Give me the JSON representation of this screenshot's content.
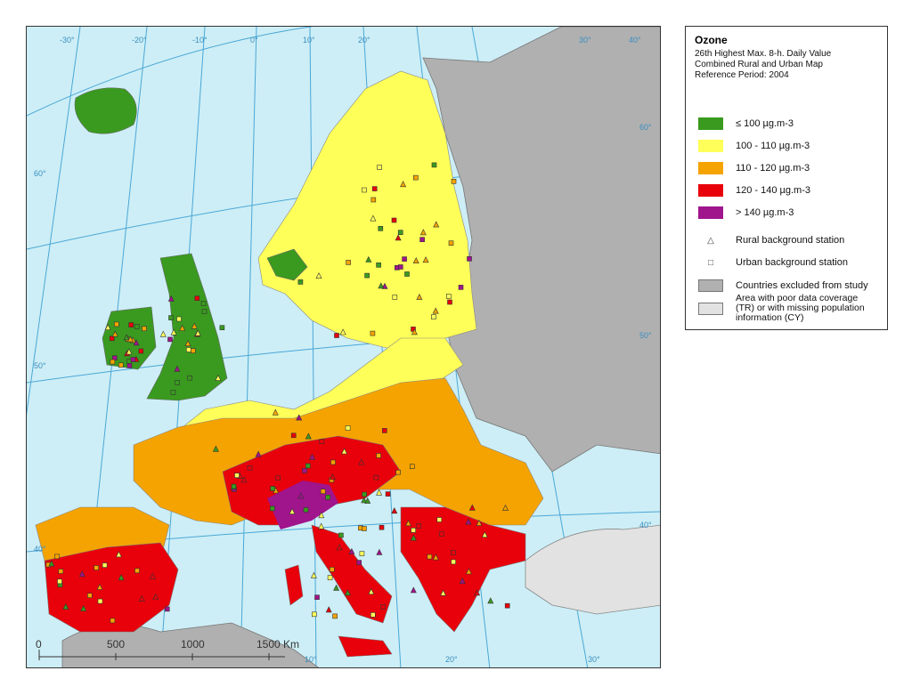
{
  "legend": {
    "title": "Ozone",
    "subtitle_line1": "26th Highest Max. 8-h. Daily Value",
    "subtitle_line2": "Combined Rural and Urban Map",
    "subtitle_line3": "Reference Period: 2004",
    "classes": [
      {
        "label": "≤ 100 µg.m-3",
        "color": "#3a9a1f"
      },
      {
        "label": "100 - 110 µg.m-3",
        "color": "#ffff5a"
      },
      {
        "label": "110 - 120 µg.m-3",
        "color": "#f5a300"
      },
      {
        "label": "120 - 140 µg.m-3",
        "color": "#e8000b"
      },
      {
        "label": "> 140 µg.m-3",
        "color": "#a0148c"
      }
    ],
    "rural_label": "Rural background station",
    "urban_label": "Urban background station",
    "excluded_label": "Countries excluded from study",
    "excluded_color": "#b0b0b0",
    "poor_label": "Area with poor data coverage (TR) or with missing population information (CY)",
    "poor_color": "#e2e2e2"
  },
  "map": {
    "lon_labels": [
      "-30°",
      "-20°",
      "-10°",
      "0°",
      "10°",
      "20°",
      "30°",
      "40°",
      "10°",
      "20°",
      "30°"
    ],
    "lat_labels": [
      "60°",
      "60°",
      "50°",
      "50°",
      "40°",
      "40°"
    ],
    "scale": {
      "ticks": [
        "0",
        "500",
        "1000",
        "1500 Km"
      ]
    },
    "sea_color": "#cdeef6",
    "grid_color": "#4aa7d6"
  }
}
